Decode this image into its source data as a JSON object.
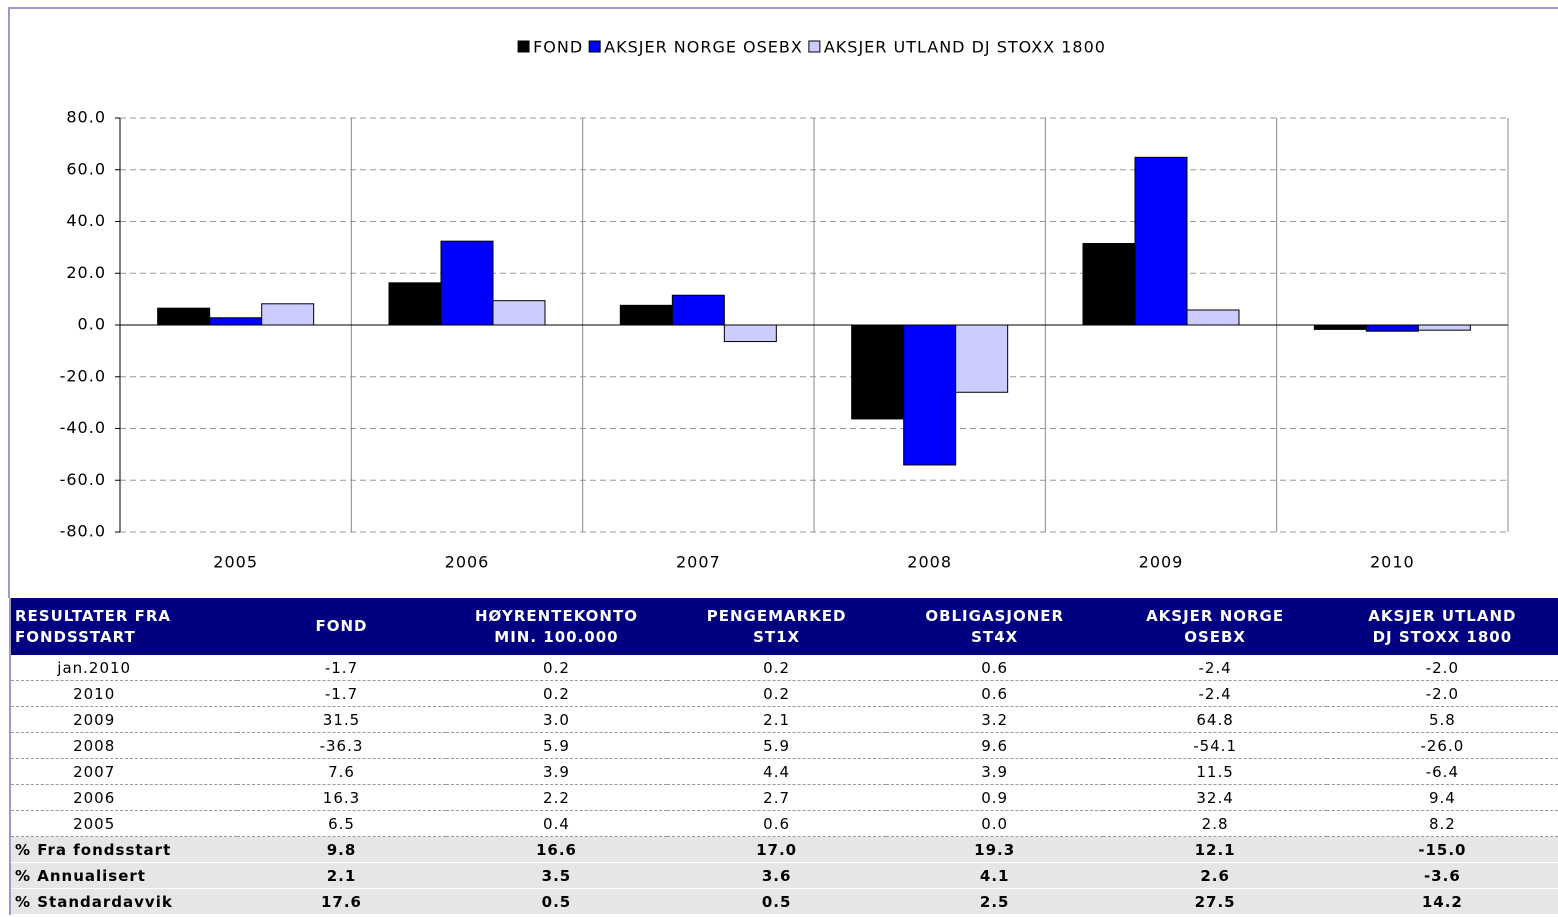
{
  "chart_data": {
    "type": "bar",
    "categories": [
      "2005",
      "2006",
      "2007",
      "2008",
      "2009",
      "2010"
    ],
    "series": [
      {
        "name": "FOND",
        "color": "#000000",
        "values": [
          6.5,
          16.3,
          7.6,
          -36.3,
          31.5,
          -1.7
        ]
      },
      {
        "name": "AKSJER NORGE OSEBX",
        "color": "#0000ff",
        "values": [
          2.8,
          32.4,
          11.5,
          -54.1,
          64.8,
          -2.4
        ]
      },
      {
        "name": "AKSJER UTLAND DJ STOXX 1800",
        "color": "#ccccff",
        "values": [
          8.2,
          9.4,
          -6.4,
          -26.0,
          5.8,
          -2.0
        ]
      }
    ],
    "ylim": [
      -80,
      80
    ],
    "yticks": [
      {
        "value": -80,
        "label": "-80.0"
      },
      {
        "value": -60,
        "label": "-60.0"
      },
      {
        "value": -40,
        "label": "-40.0"
      },
      {
        "value": -20,
        "label": "-20.0"
      },
      {
        "value": 0,
        "label": "0.0"
      },
      {
        "value": 20,
        "label": "20.0"
      },
      {
        "value": 40,
        "label": "40.0"
      },
      {
        "value": 60,
        "label": "60.0"
      },
      {
        "value": 80,
        "label": "80.0"
      }
    ],
    "grid": true,
    "legend": "top"
  },
  "table": {
    "header": [
      [
        "RESULTATER FRA",
        "FONDSSTART"
      ],
      [
        "FOND"
      ],
      [
        "HØYRENTEKONTO",
        "MIN. 100.000"
      ],
      [
        "PENGEMARKED",
        "ST1X"
      ],
      [
        "OBLIGASJONER",
        "ST4X"
      ],
      [
        "AKSJER NORGE",
        "OSEBX"
      ],
      [
        "AKSJER UTLAND",
        "DJ STOXX 1800"
      ]
    ],
    "rows": [
      [
        "jan.2010",
        "-1.7",
        "0.2",
        "0.2",
        "0.6",
        "-2.4",
        "-2.0"
      ],
      [
        "2010",
        "-1.7",
        "0.2",
        "0.2",
        "0.6",
        "-2.4",
        "-2.0"
      ],
      [
        "2009",
        "31.5",
        "3.0",
        "2.1",
        "3.2",
        "64.8",
        "5.8"
      ],
      [
        "2008",
        "-36.3",
        "5.9",
        "5.9",
        "9.6",
        "-54.1",
        "-26.0"
      ],
      [
        "2007",
        "7.6",
        "3.9",
        "4.4",
        "3.9",
        "11.5",
        "-6.4"
      ],
      [
        "2006",
        "16.3",
        "2.2",
        "2.7",
        "0.9",
        "32.4",
        "9.4"
      ],
      [
        "2005",
        "6.5",
        "0.4",
        "0.6",
        "0.0",
        "2.8",
        "8.2"
      ]
    ],
    "summary_rows": [
      [
        "% Fra fondsstart",
        "9.8",
        "16.6",
        "17.0",
        "19.3",
        "12.1",
        "-15.0"
      ],
      [
        "% Annualisert",
        "2.1",
        "3.5",
        "3.6",
        "4.1",
        "2.6",
        "-3.6"
      ],
      [
        "% Standardavvik",
        "17.6",
        "0.5",
        "0.5",
        "2.5",
        "27.5",
        "14.2"
      ]
    ]
  }
}
